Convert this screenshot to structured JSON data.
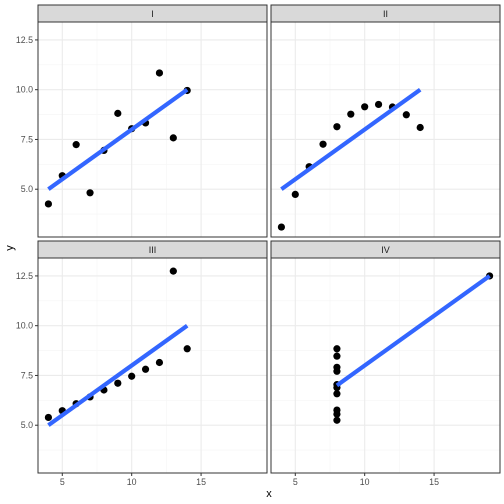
{
  "chart_data": {
    "type": "scatter",
    "facet_layout": "2x2",
    "xlabel": "x",
    "ylabel": "y",
    "xlim": [
      3.25,
      19.75
    ],
    "ylim": [
      2.6,
      13.4
    ],
    "x_ticks": [
      5,
      10,
      15
    ],
    "x_tick_labels": [
      "5",
      "10",
      "15"
    ],
    "y_ticks": [
      5.0,
      7.5,
      10.0,
      12.5
    ],
    "y_tick_labels": [
      "5.0",
      "7.5",
      "10.0",
      "12.5"
    ],
    "grid": true,
    "colors": {
      "point": "#000000",
      "fit_line": "#3366FF",
      "strip_fill": "#d9d9d9",
      "panel_border": "#333333",
      "grid_major": "#ebebeb",
      "grid_minor": "#f5f5f5"
    },
    "panels": [
      {
        "label": "I",
        "points": [
          [
            10,
            8.04
          ],
          [
            8,
            6.95
          ],
          [
            13,
            7.58
          ],
          [
            9,
            8.81
          ],
          [
            11,
            8.33
          ],
          [
            14,
            9.96
          ],
          [
            6,
            7.24
          ],
          [
            4,
            4.26
          ],
          [
            12,
            10.84
          ],
          [
            7,
            4.82
          ],
          [
            5,
            5.68
          ]
        ],
        "fit": {
          "x_start": 4,
          "x_end": 14,
          "intercept": 3.0,
          "slope": 0.5
        }
      },
      {
        "label": "II",
        "points": [
          [
            10,
            9.14
          ],
          [
            8,
            8.14
          ],
          [
            13,
            8.74
          ],
          [
            9,
            8.77
          ],
          [
            11,
            9.26
          ],
          [
            14,
            8.1
          ],
          [
            6,
            6.13
          ],
          [
            4,
            3.1
          ],
          [
            12,
            9.13
          ],
          [
            7,
            7.26
          ],
          [
            5,
            4.74
          ]
        ],
        "fit": {
          "x_start": 4,
          "x_end": 14,
          "intercept": 3.0,
          "slope": 0.5
        }
      },
      {
        "label": "III",
        "points": [
          [
            10,
            7.46
          ],
          [
            8,
            6.77
          ],
          [
            13,
            12.74
          ],
          [
            9,
            7.11
          ],
          [
            11,
            7.81
          ],
          [
            14,
            8.84
          ],
          [
            6,
            6.08
          ],
          [
            4,
            5.39
          ],
          [
            12,
            8.15
          ],
          [
            7,
            6.42
          ],
          [
            5,
            5.73
          ]
        ],
        "fit": {
          "x_start": 4,
          "x_end": 14,
          "intercept": 3.0,
          "slope": 0.5
        }
      },
      {
        "label": "IV",
        "points": [
          [
            8,
            6.58
          ],
          [
            8,
            5.76
          ],
          [
            8,
            7.71
          ],
          [
            8,
            8.84
          ],
          [
            8,
            8.47
          ],
          [
            8,
            7.04
          ],
          [
            8,
            5.25
          ],
          [
            19,
            12.5
          ],
          [
            8,
            5.56
          ],
          [
            8,
            7.91
          ],
          [
            8,
            6.89
          ]
        ],
        "fit": {
          "x_start": 8,
          "x_end": 19,
          "intercept": 3.0,
          "slope": 0.5
        }
      }
    ]
  }
}
